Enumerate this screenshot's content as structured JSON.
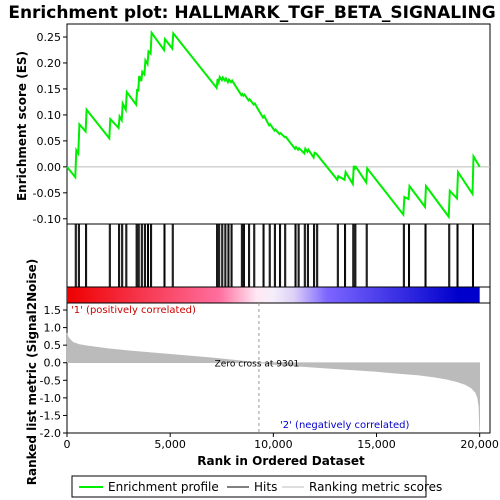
{
  "chart_data": {
    "type": "line",
    "title": "Enrichment plot: HALLMARK_TGF_BETA_SIGNALING",
    "colors": {
      "enrichment_profile": "#00ee00",
      "hits": "#000000",
      "ranking_metric": "#bbbbbb",
      "positive_end": "#ee0000",
      "negative_end": "#0000cc"
    },
    "top_panel": {
      "ylabel": "Enrichment score (ES)",
      "ylim": [
        -0.11,
        0.275
      ],
      "yticks": [
        -0.1,
        -0.05,
        0.0,
        0.05,
        0.1,
        0.15,
        0.2,
        0.25
      ],
      "ytick_labels": [
        "-0.10",
        "-0.05",
        "0.00",
        "0.05",
        "0.10",
        "0.15",
        "0.20",
        "0.25"
      ],
      "zero_line": true,
      "series": [
        {
          "name": "Enrichment profile",
          "x": [
            0,
            400,
            450,
            550,
            600,
            900,
            950,
            2050,
            2100,
            2500,
            2550,
            2650,
            2700,
            2850,
            2900,
            3350,
            3400,
            3450,
            3500,
            3600,
            3650,
            3750,
            3800,
            3900,
            3950,
            4050,
            4100,
            4700,
            4750,
            5100,
            5150,
            7250,
            7300,
            7350,
            7400,
            7500,
            7550,
            7650,
            7700,
            7800,
            7850,
            7950,
            8000,
            8450,
            8500,
            8550,
            8600,
            8800,
            8850,
            9050,
            9100,
            9300,
            9500,
            9550,
            9800,
            9850,
            10050,
            10100,
            10300,
            10350,
            10550,
            10600,
            11050,
            11100,
            11200,
            11250,
            11500,
            11550,
            11650,
            11700,
            11950,
            12000,
            12100,
            12150,
            13100,
            13150,
            13450,
            13500,
            13850,
            13900,
            13950,
            14000,
            14500,
            14550,
            16300,
            16350,
            16550,
            16600,
            17350,
            17400,
            18500,
            18550,
            18900,
            18950,
            19650,
            19700,
            20000
          ],
          "y": [
            0.0,
            -0.02,
            0.032,
            0.026,
            0.082,
            0.068,
            0.11,
            0.055,
            0.092,
            0.075,
            0.097,
            0.09,
            0.122,
            0.11,
            0.144,
            0.12,
            0.15,
            0.145,
            0.175,
            0.165,
            0.183,
            0.178,
            0.205,
            0.198,
            0.222,
            0.218,
            0.258,
            0.225,
            0.246,
            0.228,
            0.257,
            0.152,
            0.169,
            0.163,
            0.173,
            0.167,
            0.172,
            0.166,
            0.17,
            0.163,
            0.168,
            0.163,
            0.166,
            0.138,
            0.14,
            0.137,
            0.139,
            0.128,
            0.13,
            0.12,
            0.122,
            0.108,
            0.095,
            0.098,
            0.08,
            0.082,
            0.07,
            0.072,
            0.063,
            0.065,
            0.057,
            0.058,
            0.035,
            0.038,
            0.033,
            0.036,
            0.026,
            0.035,
            0.029,
            0.033,
            0.018,
            0.027,
            0.025,
            0.022,
            -0.025,
            -0.018,
            -0.025,
            -0.01,
            -0.033,
            0.002,
            -0.003,
            0.0,
            -0.03,
            -0.003,
            -0.092,
            -0.058,
            -0.062,
            -0.037,
            -0.077,
            -0.037,
            -0.096,
            -0.046,
            -0.061,
            -0.01,
            -0.052,
            0.02,
            0.0
          ]
        }
      ]
    },
    "hits_panel": {
      "hit_positions": [
        400,
        450,
        550,
        600,
        900,
        950,
        2050,
        2100,
        2500,
        2550,
        2650,
        2700,
        2850,
        2900,
        3350,
        3400,
        3450,
        3500,
        3600,
        3650,
        3750,
        3800,
        3900,
        3950,
        4050,
        4100,
        4700,
        4750,
        5100,
        5150,
        7250,
        7300,
        7350,
        7400,
        7500,
        7550,
        7650,
        7700,
        7800,
        7850,
        7950,
        8000,
        8450,
        8500,
        8550,
        8600,
        8800,
        8850,
        9050,
        9100,
        9500,
        9550,
        9800,
        9850,
        10050,
        10100,
        10300,
        10350,
        10550,
        10600,
        11050,
        11100,
        11200,
        11250,
        11500,
        11550,
        11650,
        11700,
        11950,
        12000,
        12100,
        12150,
        13100,
        13150,
        13450,
        13500,
        13850,
        13900,
        13950,
        14000,
        14500,
        14550,
        16300,
        16350,
        16550,
        16600,
        17350,
        17400,
        18500,
        18550,
        18900,
        18950,
        19650,
        19700
      ]
    },
    "bottom_panel": {
      "ylabel": "Ranked list metric (Signal2Noise)",
      "xlabel": "Rank in Ordered Dataset",
      "ylim": [
        -2.0,
        1.7
      ],
      "yticks": [
        -2.0,
        -1.5,
        -1.0,
        -0.5,
        0.0,
        0.5,
        1.0,
        1.5
      ],
      "ytick_labels": [
        "-2.0",
        "-1.5",
        "-1.0",
        "-0.5",
        "0.0",
        "0.5",
        "1.0",
        "1.5"
      ],
      "xlim": [
        0,
        20500
      ],
      "xticks": [
        0,
        5000,
        10000,
        15000,
        20000
      ],
      "xtick_labels": [
        "0",
        "5,000",
        "10,000",
        "15,000",
        "20,000"
      ],
      "metric_x": [
        0,
        50,
        150,
        300,
        600,
        1000,
        2000,
        3000,
        4000,
        5000,
        6000,
        7000,
        8000,
        9301,
        10000,
        11000,
        12000,
        13000,
        14000,
        15000,
        16000,
        17000,
        17800,
        18400,
        18900,
        19300,
        19600,
        19800,
        19900,
        19960,
        20000
      ],
      "metric_y": [
        0.85,
        0.74,
        0.66,
        0.58,
        0.52,
        0.48,
        0.4,
        0.34,
        0.29,
        0.24,
        0.19,
        0.14,
        0.08,
        0.0,
        -0.05,
        -0.09,
        -0.13,
        -0.17,
        -0.21,
        -0.25,
        -0.3,
        -0.35,
        -0.41,
        -0.47,
        -0.54,
        -0.62,
        -0.72,
        -0.85,
        -1.0,
        -1.25,
        -1.95
      ],
      "zero_cross": 9301,
      "zero_cross_label": "Zero cross at 9301",
      "pos_label": "'1' (positively correlated)",
      "neg_label": "'2' (negatively correlated)"
    },
    "legend": [
      {
        "key": "enrichment_profile",
        "label": "Enrichment profile"
      },
      {
        "key": "hits",
        "label": "Hits"
      },
      {
        "key": "ranking_metric",
        "label": "Ranking metric scores"
      }
    ]
  }
}
